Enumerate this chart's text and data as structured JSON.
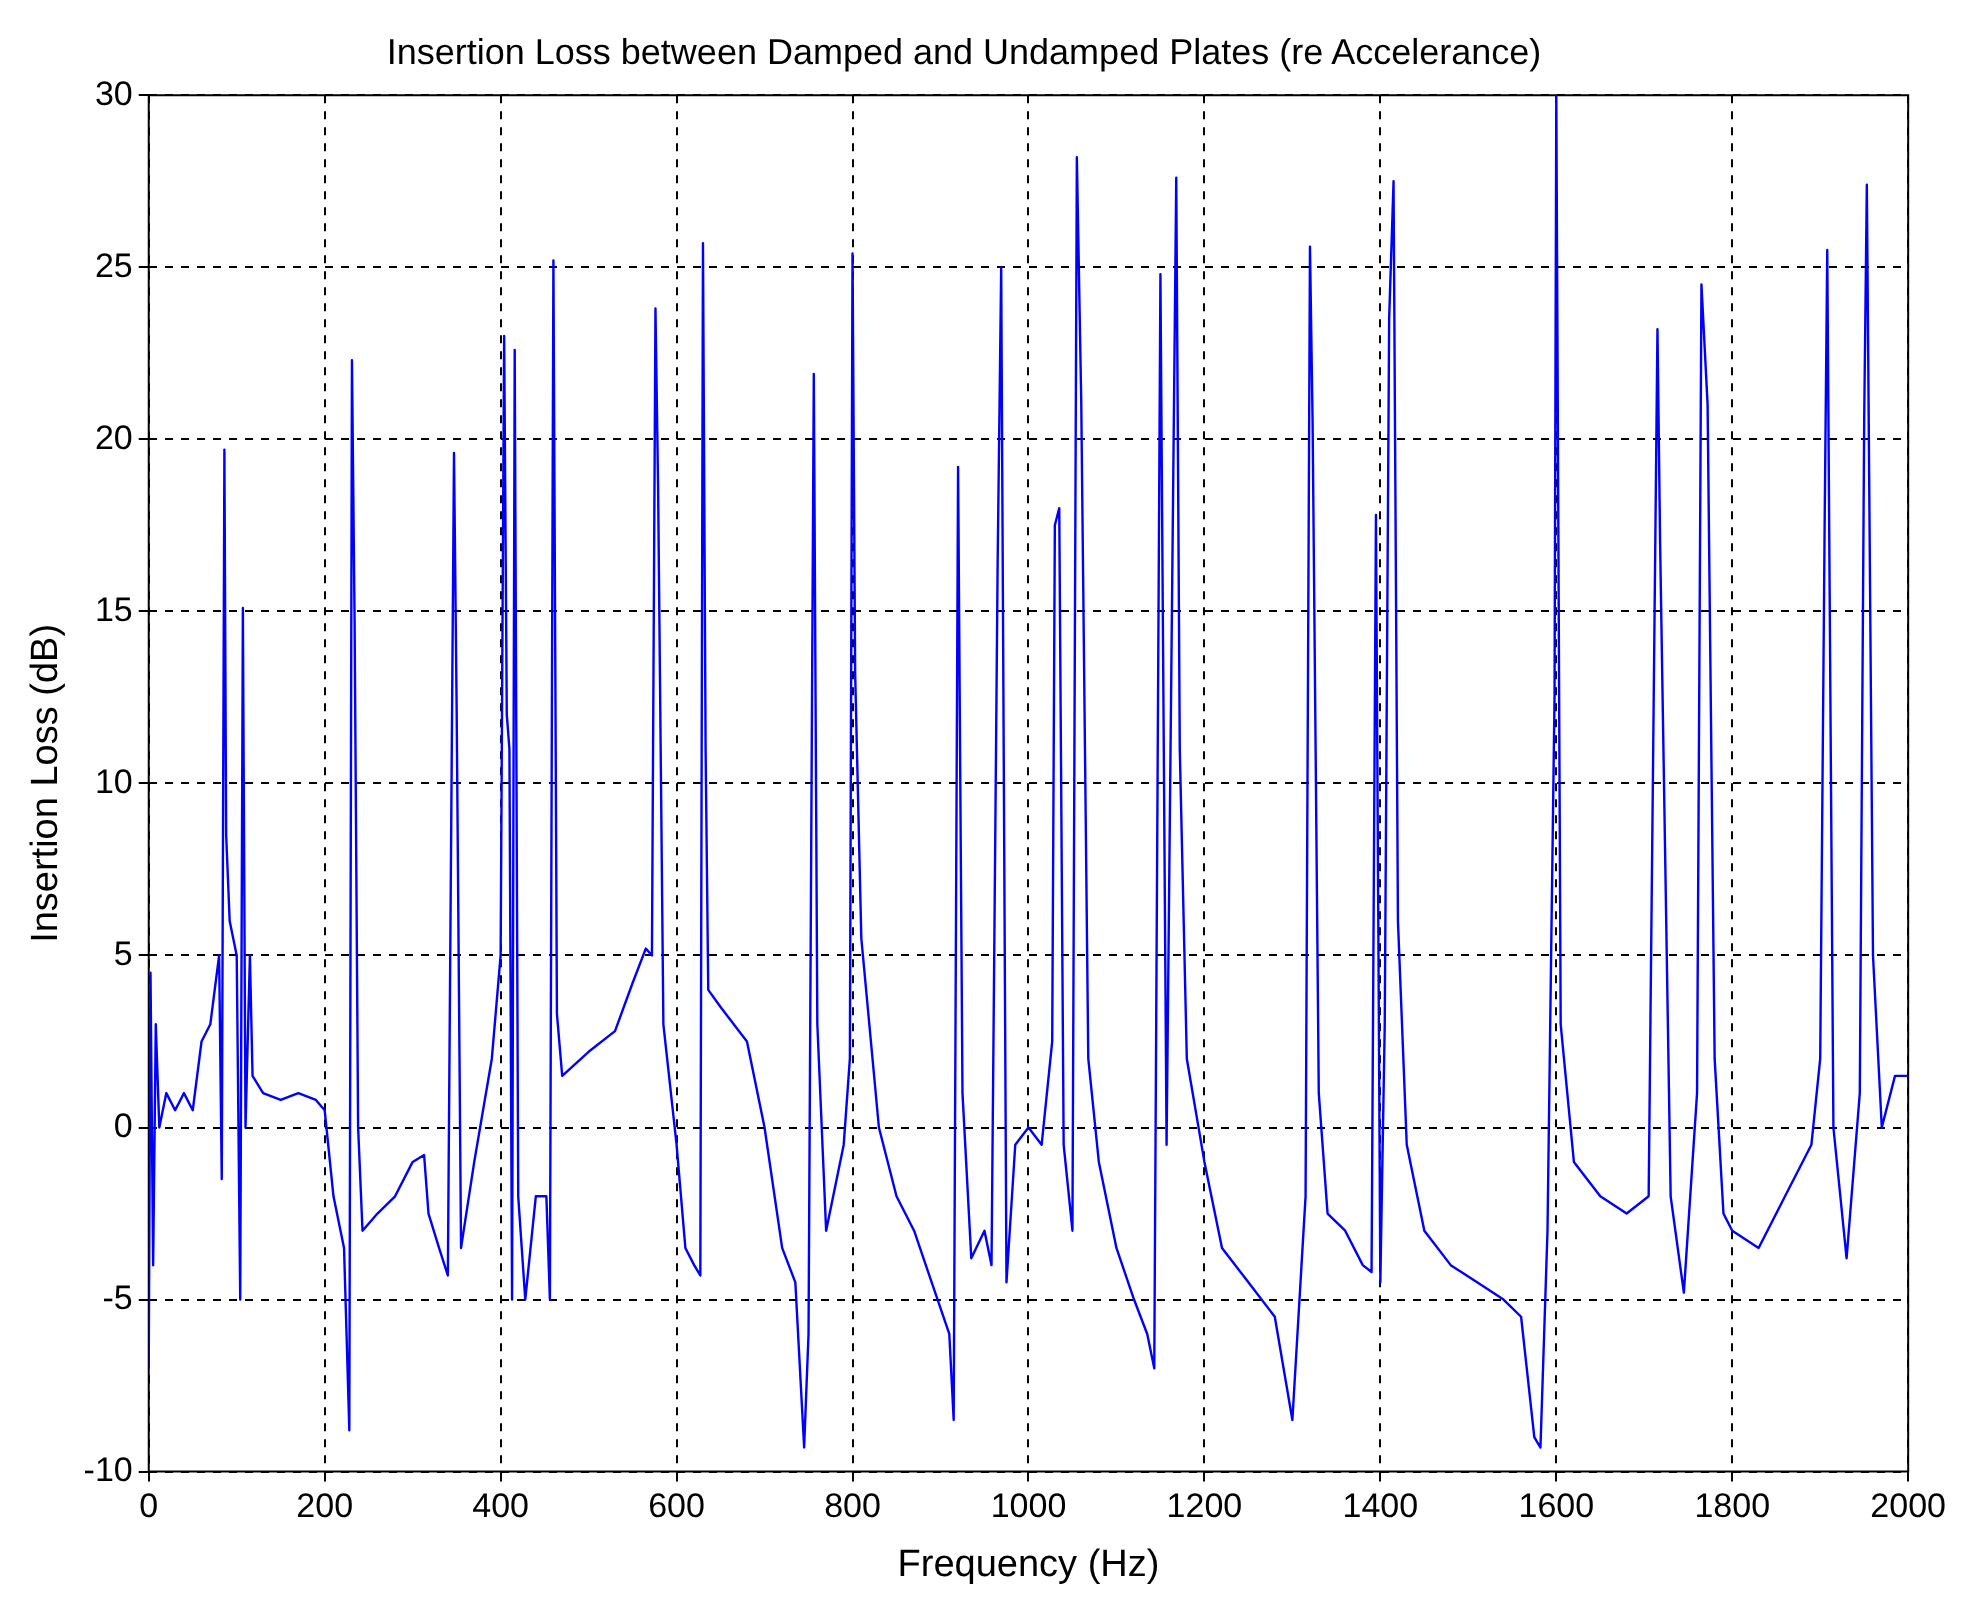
{
  "chart_data": {
    "type": "line",
    "title": "Insertion Loss between Damped and Undamped Plates (re Accelerance)",
    "xlabel": "Frequency (Hz)",
    "ylabel": "Insertion Loss (dB)",
    "x": [
      0,
      2,
      5,
      8,
      12,
      20,
      30,
      40,
      50,
      60,
      70,
      80,
      83,
      86,
      88,
      92,
      100,
      104,
      107,
      110,
      115,
      118,
      130,
      150,
      170,
      190,
      200,
      210,
      222,
      228,
      231,
      234,
      238,
      243,
      260,
      280,
      300,
      313,
      318,
      330,
      340,
      347,
      350,
      355,
      370,
      390,
      400,
      404,
      407,
      410,
      413,
      416,
      420,
      428,
      440,
      452,
      456,
      460,
      464,
      470,
      500,
      530,
      550,
      565,
      572,
      576,
      579,
      585,
      600,
      610,
      620,
      627,
      630,
      633,
      636,
      650,
      680,
      700,
      720,
      735,
      745,
      750,
      756,
      760,
      770,
      790,
      797,
      800,
      803,
      810,
      830,
      850,
      870,
      890,
      910,
      915,
      920,
      925,
      935,
      950,
      958,
      965,
      969,
      975,
      985,
      1000,
      1015,
      1027,
      1030,
      1035,
      1040,
      1050,
      1055,
      1060,
      1068,
      1080,
      1100,
      1120,
      1135,
      1143,
      1150,
      1157,
      1168,
      1172,
      1180,
      1200,
      1220,
      1250,
      1280,
      1300,
      1315,
      1320,
      1323,
      1330,
      1340,
      1360,
      1380,
      1390,
      1395,
      1400,
      1405,
      1410,
      1415,
      1420,
      1430,
      1450,
      1480,
      1510,
      1540,
      1560,
      1575,
      1582,
      1590,
      1598,
      1600,
      1605,
      1620,
      1650,
      1680,
      1705,
      1715,
      1718,
      1730,
      1745,
      1760,
      1765,
      1772,
      1780,
      1790,
      1800,
      1830,
      1860,
      1890,
      1900,
      1905,
      1908,
      1915,
      1930,
      1945,
      1950,
      1953,
      1960,
      1970,
      1985,
      2000
    ],
    "series": [
      {
        "color": "#0000ff",
        "values": [
          -7,
          4.5,
          -4,
          3,
          0,
          1,
          0.5,
          1,
          0.5,
          2.5,
          3,
          5,
          -1.5,
          19.7,
          8.5,
          6,
          5,
          -5,
          15.1,
          0,
          5,
          1.5,
          1,
          0.8,
          1,
          0.8,
          0.5,
          -2,
          -3.5,
          -8.8,
          22.3,
          14.7,
          0,
          -3,
          -2.5,
          -2,
          -1,
          -0.8,
          -2.5,
          -3.5,
          -4.3,
          19.6,
          12.2,
          -3.5,
          -1,
          2,
          5,
          23,
          12,
          11,
          -5,
          22.6,
          -2,
          -5,
          -2,
          -2,
          -5,
          25.2,
          3.3,
          1.5,
          2.2,
          2.8,
          4.2,
          5.2,
          5,
          23.8,
          18.6,
          3,
          -0.5,
          -3.5,
          -4,
          -4.3,
          25.7,
          11,
          4,
          3.5,
          2.5,
          0,
          -3.5,
          -4.5,
          -9.3,
          -6,
          21.9,
          3,
          -3,
          -0.5,
          2,
          25.4,
          13.2,
          5.5,
          0,
          -2,
          -3,
          -4.5,
          -6,
          -8.5,
          19.2,
          1,
          -3.8,
          -3,
          -4,
          16.5,
          25,
          -4.5,
          -0.5,
          0,
          -0.5,
          2.5,
          17.5,
          18,
          -0.5,
          -3,
          28.2,
          21.1,
          2,
          -1,
          -3.5,
          -5,
          -6,
          -7,
          24.8,
          -0.5,
          27.6,
          11,
          2,
          -1,
          -3.5,
          -4.5,
          -5.5,
          -8.5,
          -2,
          25.6,
          20.5,
          1,
          -2.5,
          -3,
          -4,
          -4.2,
          17.8,
          -4.5,
          3,
          23.5,
          27.5,
          6,
          -0.5,
          -3,
          -4,
          -4.5,
          -5,
          -5.5,
          -9,
          -9.3,
          -3,
          12.5,
          30,
          3,
          -1,
          -2,
          -2.5,
          -2,
          23.2,
          17,
          -2,
          -4.8,
          1,
          24.5,
          21,
          2,
          -2.5,
          -3,
          -3.5,
          -2,
          -0.5,
          2,
          17.4,
          25.5,
          0,
          -3.8,
          1,
          20.6,
          27.4,
          5,
          0,
          1.5,
          1.5
        ]
      }
    ],
    "xlim": [
      0,
      2000
    ],
    "xticks": [
      0,
      200,
      400,
      600,
      800,
      1000,
      1200,
      1400,
      1600,
      1800,
      2000
    ],
    "ylim": [
      -10,
      30
    ],
    "yticks": [
      -10,
      -5,
      0,
      5,
      10,
      15,
      20,
      25,
      30
    ],
    "grid": true,
    "marker": "none",
    "line_style": "solid",
    "legend": false
  }
}
